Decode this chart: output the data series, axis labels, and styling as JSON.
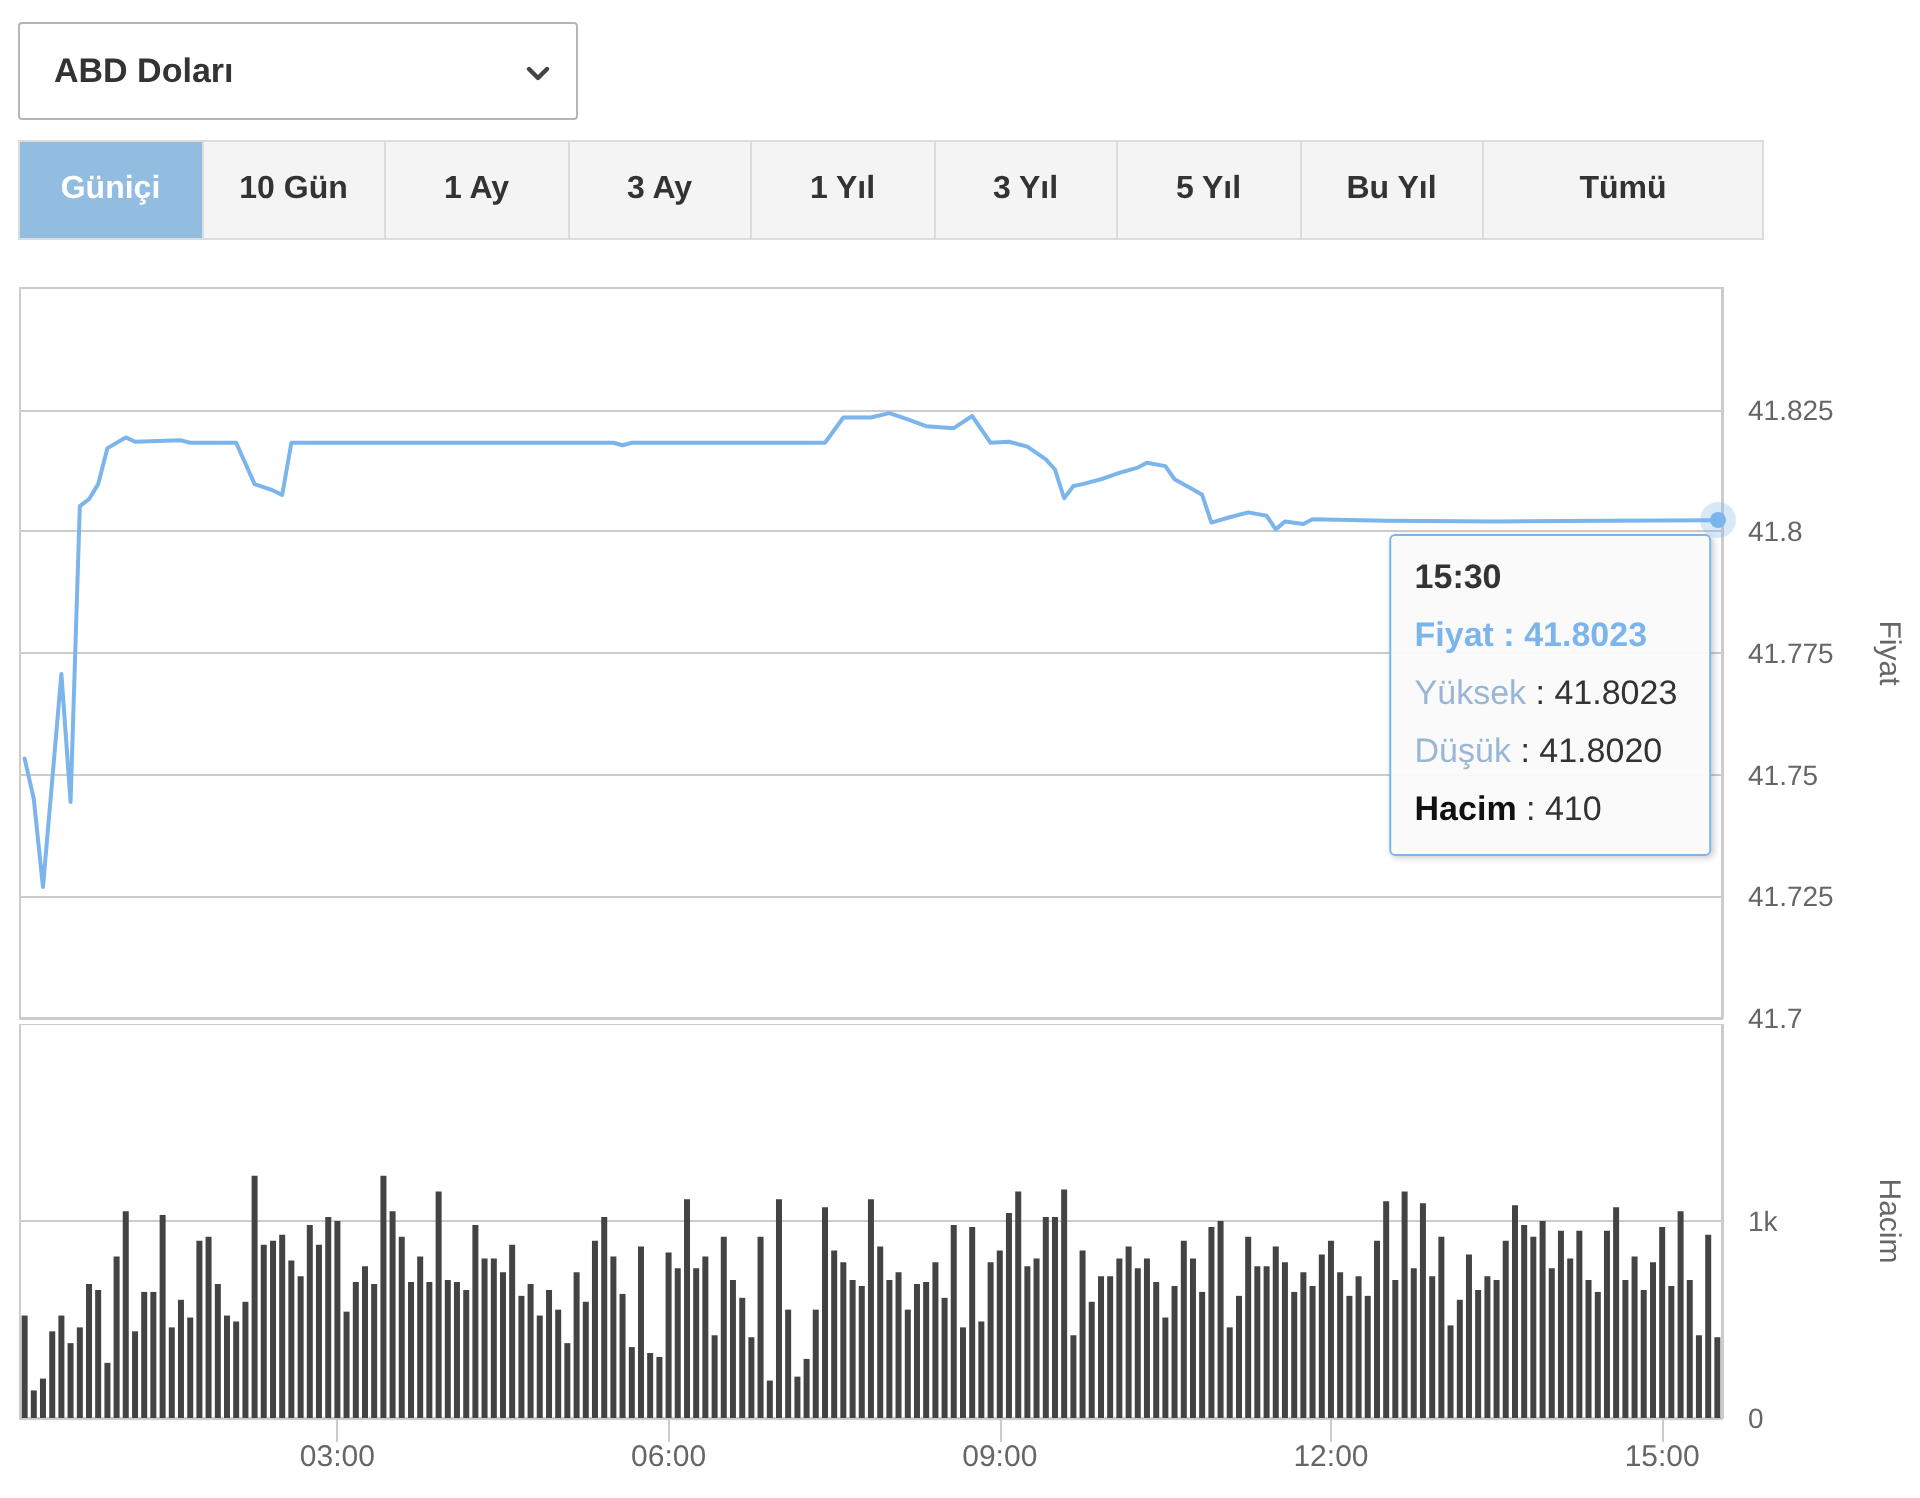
{
  "chart_data": [
    {
      "type": "line",
      "title": "ABD Doları",
      "ylabel": "Fiyat",
      "x": [
        0.167,
        0.25,
        0.333,
        0.5,
        0.583,
        0.667,
        0.75,
        0.833,
        0.917,
        1.083,
        1.167,
        1.583,
        1.667,
        2.083,
        2.25,
        2.417,
        2.5,
        2.583,
        5.5,
        5.583,
        5.667,
        7.417,
        7.583,
        7.833,
        8,
        8.167,
        8.333,
        8.583,
        8.75,
        8.917,
        9.083,
        9.25,
        9.417,
        9.5,
        9.583,
        9.667,
        9.75,
        9.917,
        10.083,
        10.25,
        10.333,
        10.5,
        10.583,
        10.75,
        10.833,
        10.917,
        11.083,
        11.25,
        11.417,
        11.5,
        11.583,
        11.75,
        11.833,
        12.5,
        13.5,
        14.5,
        15.5
      ],
      "series": [
        {
          "color": "#7cb5ec",
          "values": [
            41.7533,
            41.745,
            41.7269,
            41.7707,
            41.7444,
            41.8052,
            41.8066,
            41.8097,
            41.8171,
            41.8193,
            41.8184,
            41.8187,
            41.8182,
            41.8182,
            41.8097,
            41.8084,
            41.8075,
            41.8182,
            41.8182,
            41.8177,
            41.8182,
            41.8182,
            41.8234,
            41.8234,
            41.8243,
            41.823,
            41.8216,
            41.8212,
            41.8237,
            41.8182,
            41.8184,
            41.8174,
            41.8148,
            41.8127,
            41.8068,
            41.8093,
            41.8097,
            41.8107,
            41.812,
            41.8131,
            41.8141,
            41.8134,
            41.8107,
            41.8086,
            41.8075,
            41.8018,
            41.8029,
            41.8039,
            41.8032,
            41.8004,
            41.802,
            41.8015,
            41.8025,
            41.8022,
            41.802,
            41.8022,
            41.8023
          ]
        }
      ],
      "xlim": [
        0.125,
        15.542
      ],
      "ylim": [
        41.7,
        41.85
      ],
      "yticks": [
        41.7,
        41.725,
        41.75,
        41.775,
        41.8,
        41.825
      ],
      "grid": "y",
      "tick_labels": "y",
      "annotations": [
        "Güniçi",
        "10 Gün",
        "1 Ay",
        "3 Ay",
        "1 Yıl",
        "3 Yıl",
        "5 Yıl",
        "Bu Yıl",
        "Tümü",
        {
          "text": "15:30\nFiyat : 41.8023\nYüksek : 41.8023\nDüşük : 41.8020\nHacim : 410",
          "x": 15.5,
          "y": 41.8023
        }
      ]
    },
    {
      "type": "bar",
      "ylabel": "Hacim",
      "x": [
        0.167,
        0.25,
        0.333,
        0.417,
        0.5,
        0.583,
        0.667,
        0.75,
        0.833,
        0.917,
        1,
        1.083,
        1.167,
        1.25,
        1.333,
        1.417,
        1.5,
        1.583,
        1.667,
        1.75,
        1.833,
        1.917,
        2,
        2.083,
        2.167,
        2.25,
        2.333,
        2.417,
        2.5,
        2.583,
        2.667,
        2.75,
        2.833,
        2.917,
        3,
        3.083,
        3.167,
        3.25,
        3.333,
        3.417,
        3.5,
        3.583,
        3.667,
        3.75,
        3.833,
        3.917,
        4,
        4.083,
        4.167,
        4.25,
        4.333,
        4.417,
        4.5,
        4.583,
        4.667,
        4.75,
        4.833,
        4.917,
        5,
        5.083,
        5.167,
        5.25,
        5.333,
        5.417,
        5.5,
        5.583,
        5.667,
        5.75,
        5.833,
        5.917,
        6,
        6.083,
        6.167,
        6.25,
        6.333,
        6.417,
        6.5,
        6.583,
        6.667,
        6.75,
        6.833,
        6.917,
        7,
        7.083,
        7.167,
        7.25,
        7.333,
        7.417,
        7.5,
        7.583,
        7.667,
        7.75,
        7.833,
        7.917,
        8,
        8.083,
        8.167,
        8.25,
        8.333,
        8.417,
        8.5,
        8.583,
        8.667,
        8.75,
        8.833,
        8.917,
        9,
        9.083,
        9.167,
        9.25,
        9.333,
        9.417,
        9.5,
        9.583,
        9.667,
        9.75,
        9.833,
        9.917,
        10,
        10.083,
        10.167,
        10.25,
        10.333,
        10.417,
        10.5,
        10.583,
        10.667,
        10.75,
        10.833,
        10.917,
        11,
        11.083,
        11.167,
        11.25,
        11.333,
        11.417,
        11.5,
        11.583,
        11.667,
        11.75,
        11.833,
        11.917,
        12,
        12.083,
        12.167,
        12.25,
        12.333,
        12.417,
        12.5,
        12.583,
        12.667,
        12.75,
        12.833,
        12.917,
        13,
        13.083,
        13.167,
        13.25,
        13.333,
        13.417,
        13.5,
        13.583,
        13.667,
        13.75,
        13.833,
        13.917,
        14,
        14.083,
        14.167,
        14.25,
        14.333,
        14.417,
        14.5,
        14.583,
        14.667,
        14.75,
        14.833,
        14.917,
        15,
        15.083,
        15.167,
        15.25,
        15.333,
        15.417,
        15.5
      ],
      "series": [
        {
          "color": "#434343",
          "values": [
            520,
            140,
            200,
            440,
            520,
            380,
            460,
            680,
            650,
            280,
            820,
            1050,
            440,
            640,
            640,
            1030,
            460,
            600,
            510,
            900,
            920,
            680,
            520,
            490,
            590,
            1230,
            880,
            900,
            930,
            800,
            720,
            980,
            880,
            1020,
            1000,
            540,
            690,
            770,
            680,
            1230,
            1050,
            920,
            690,
            820,
            690,
            1150,
            700,
            690,
            650,
            980,
            810,
            810,
            740,
            880,
            620,
            680,
            520,
            650,
            550,
            380,
            740,
            590,
            900,
            1020,
            820,
            630,
            360,
            870,
            330,
            310,
            840,
            760,
            1110,
            760,
            820,
            420,
            920,
            700,
            610,
            410,
            920,
            190,
            1110,
            550,
            210,
            300,
            550,
            1070,
            850,
            790,
            700,
            670,
            1110,
            870,
            700,
            740,
            550,
            680,
            690,
            790,
            610,
            980,
            460,
            970,
            490,
            790,
            850,
            1040,
            1150,
            770,
            810,
            1020,
            1020,
            1160,
            420,
            850,
            590,
            720,
            720,
            810,
            870,
            760,
            810,
            690,
            510,
            670,
            900,
            810,
            640,
            970,
            1000,
            460,
            620,
            920,
            770,
            770,
            870,
            790,
            640,
            740,
            670,
            830,
            900,
            740,
            620,
            720,
            620,
            900,
            1100,
            700,
            1150,
            760,
            1090,
            720,
            920,
            470,
            600,
            830,
            650,
            720,
            700,
            900,
            1080,
            980,
            920,
            1000,
            760,
            950,
            810,
            950,
            700,
            640,
            950,
            1070,
            700,
            820,
            650,
            790,
            970,
            670,
            1050,
            700,
            420,
            930,
            410
          ]
        }
      ],
      "xlim": [
        0.125,
        15.542
      ],
      "xticks": [
        {
          "value": 3,
          "label": "03:00"
        },
        {
          "value": 6,
          "label": "06:00"
        },
        {
          "value": 9,
          "label": "09:00"
        },
        {
          "value": 12,
          "label": "12:00"
        },
        {
          "value": 15,
          "label": "15:00"
        }
      ],
      "ylim": [
        0,
        2000
      ],
      "yticks": [
        {
          "value": 0,
          "label": "0"
        },
        {
          "value": 1000,
          "label": "1k"
        }
      ],
      "grid": "y"
    }
  ]
}
